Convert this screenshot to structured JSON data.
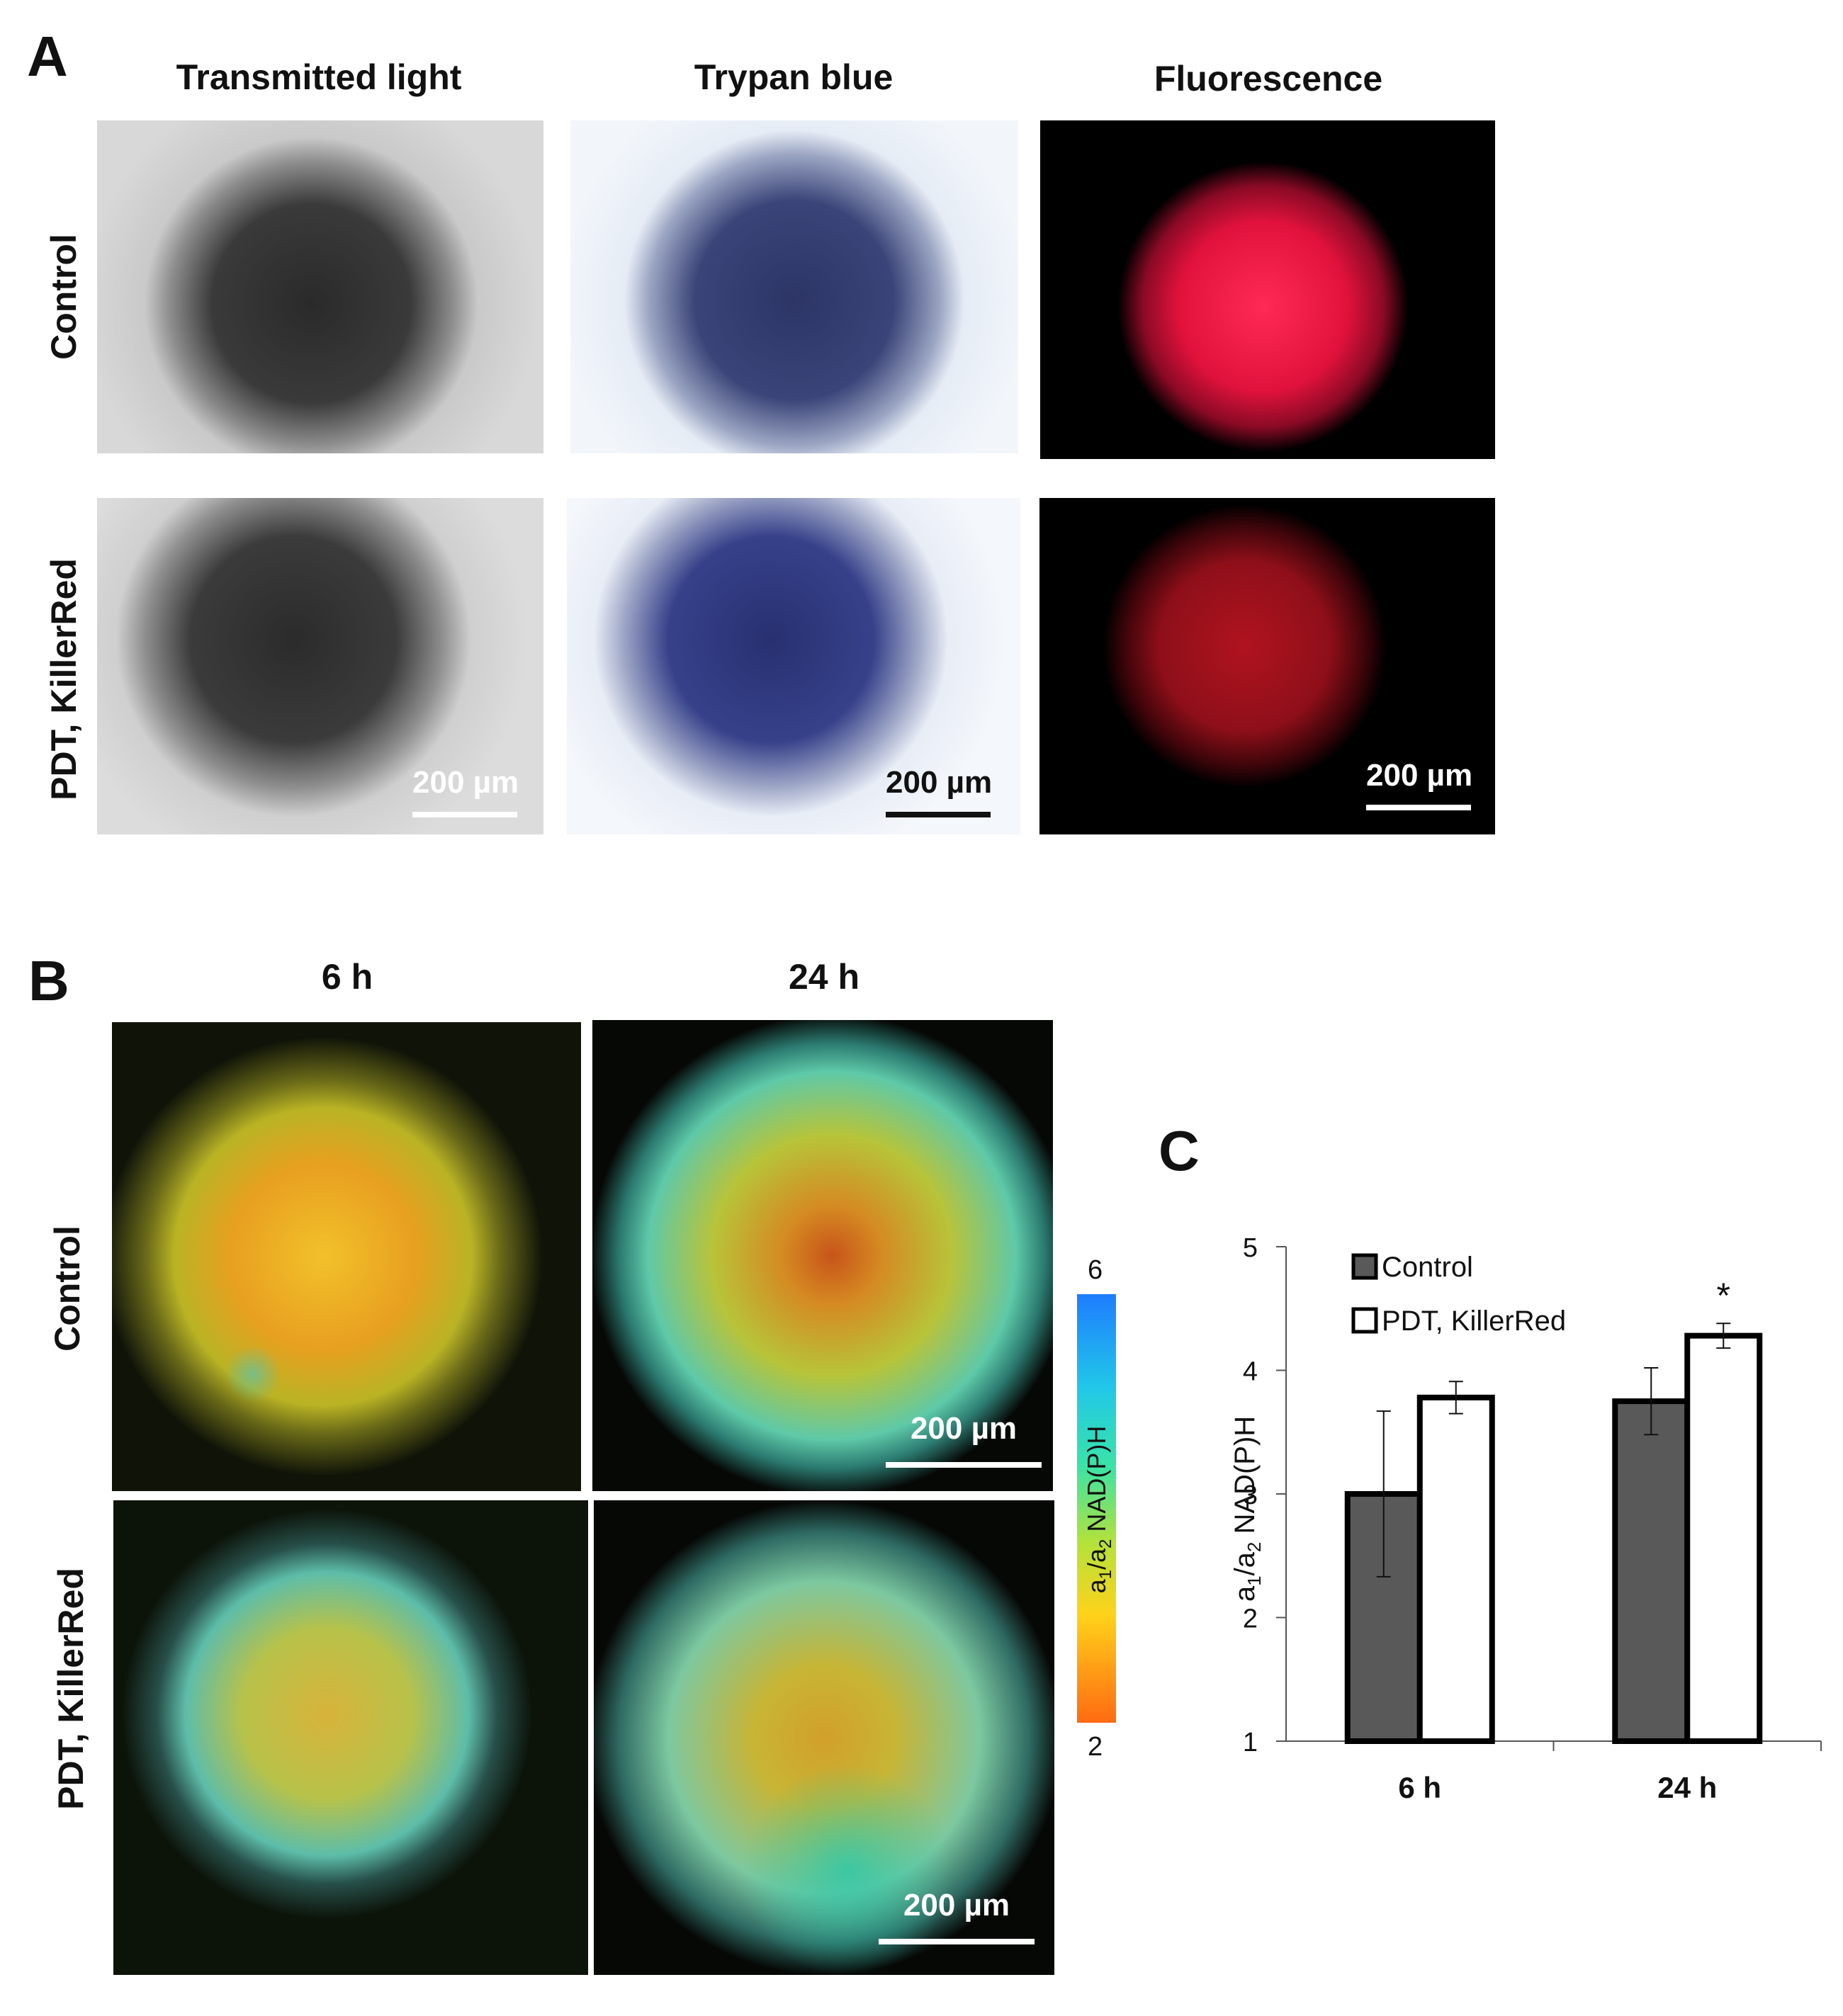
{
  "panelA": {
    "letter": "A",
    "columns": [
      "Transmitted light",
      "Trypan blue",
      "Fluorescence"
    ],
    "rows": [
      "Control",
      "PDT, KillerRed"
    ],
    "scalebar": "200 µm"
  },
  "panelB": {
    "letter": "B",
    "columns": [
      "6 h",
      "24 h"
    ],
    "rows": [
      "Control",
      "PDT, KillerRed"
    ],
    "scalebar": "200 µm",
    "colorbar": {
      "max": "6",
      "min": "2",
      "label_main": "a",
      "sub1": "1",
      "slash": "/a",
      "sub2": "2",
      "label_rest": " NAD(P)H"
    }
  },
  "panelC": {
    "letter": "C"
  },
  "chart_data": {
    "type": "bar",
    "categories": [
      "6 h",
      "24 h"
    ],
    "series": [
      {
        "name": "Control",
        "values": [
          3.0,
          3.75
        ],
        "errors": [
          0.67,
          0.27
        ],
        "color": "#595959"
      },
      {
        "name": "PDT, KillerRed",
        "values": [
          3.78,
          4.28
        ],
        "errors": [
          0.13,
          0.1
        ],
        "color": "#ffffff"
      }
    ],
    "annotation": "*",
    "ylabel_parts": {
      "a": "a",
      "s1": "1",
      "slash": "/a",
      "s2": "2",
      "rest": " NAD(P)H"
    },
    "ylim": [
      1,
      5
    ],
    "yticks": [
      "1",
      "2",
      "3",
      "4",
      "5"
    ],
    "legend_position": "top-left",
    "grid": false
  }
}
